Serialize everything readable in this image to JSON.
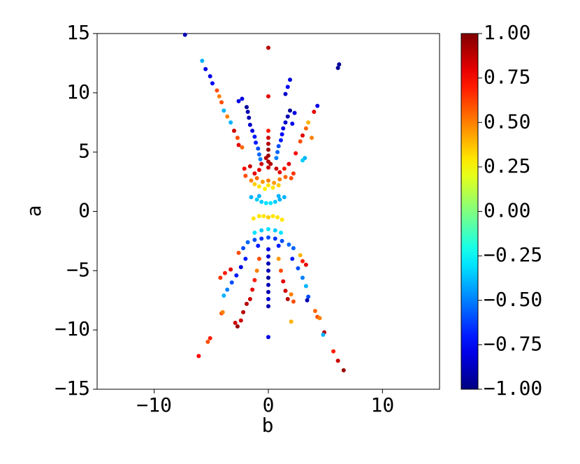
{
  "chart_data": {
    "type": "scatter",
    "xlabel": "b",
    "ylabel": "a",
    "xlim": [
      -15,
      15
    ],
    "ylim": [
      -15,
      15
    ],
    "xticks": [
      {
        "value": -10,
        "label": "−10"
      },
      0,
      10
    ],
    "yticks": [
      {
        "value": -15,
        "label": "−15"
      },
      {
        "value": -10,
        "label": "−10"
      },
      {
        "value": -5,
        "label": "−5"
      },
      0,
      5,
      10,
      15
    ],
    "colormap": "jet",
    "clim": [
      -1,
      1
    ],
    "cticks": [
      {
        "value": -1,
        "label": "−1.00"
      },
      {
        "value": -0.75,
        "label": "−0.75"
      },
      {
        "value": -0.5,
        "label": "−0.50"
      },
      {
        "value": -0.25,
        "label": "−0.25"
      },
      {
        "value": 0,
        "label": "0.00"
      },
      {
        "value": 0.25,
        "label": "0.25"
      },
      {
        "value": 0.5,
        "label": "0.50"
      },
      {
        "value": 0.75,
        "label": "0.75"
      },
      {
        "value": 1,
        "label": "1.00"
      }
    ],
    "x": [
      -7.3,
      0,
      6.1,
      6.2,
      0,
      -5.8,
      -5.5,
      -5.1,
      -4.9,
      -4.5,
      -4.3,
      -4.1,
      -3.9,
      -3.6,
      -3.3,
      -3.0,
      -2.7,
      -2.3,
      -2.6,
      4.3,
      4.0,
      3.5,
      3.3,
      3.0,
      3.8,
      2.8,
      3.2,
      3.0,
      2.4,
      1.9,
      1.7,
      1.5,
      -2.3,
      -2.6,
      -1.9,
      -1.8,
      -1.7,
      -1.6,
      -1.4,
      -1.2,
      -1.1,
      -0.9,
      -0.8,
      -0.7,
      1.9,
      1.7,
      1.5,
      1.3,
      1.2,
      1.1,
      0.9,
      0.8,
      0.7,
      2.3,
      2.1,
      0,
      0,
      0,
      0,
      0,
      0,
      0,
      0.2,
      -0.2,
      -0.6,
      -0.8,
      -1.2,
      -1.6,
      -2.1,
      0.7,
      1.0,
      1.4,
      1.8,
      2.2,
      -2.0,
      -1.5,
      -1.0,
      -0.5,
      0,
      0.5,
      1.0,
      1.5,
      2.0,
      -0.8,
      -0.3,
      0,
      0.4,
      0.9,
      -1.2,
      -1.5,
      -1.0,
      -0.6,
      -0.2,
      0.2,
      0.6,
      1.0,
      1.4,
      -0.8,
      0.9,
      -1.3,
      -0.8,
      -0.4,
      0,
      0.4,
      0.8,
      1.2,
      -1.2,
      -0.6,
      0,
      0.6,
      1.1,
      -1.8,
      -1.2,
      -0.6,
      0,
      0.6,
      1.2,
      1.8,
      -0.9,
      0.9,
      -2.2,
      2.2,
      0,
      0,
      0,
      0,
      0,
      0,
      0,
      0,
      0,
      0,
      -0.8,
      -1.0,
      -1.2,
      -1.4,
      -1.6,
      0.9,
      1.1,
      1.3,
      1.5,
      1.7,
      -1.9,
      -2.2,
      -2.4,
      -2.7,
      -2.9,
      -2.0,
      -2.4,
      -2.8,
      -3.2,
      -3.6,
      -3.9,
      2.1,
      2.6,
      3.0,
      3.3,
      3.5,
      3.4,
      2.0,
      2.2,
      3.3,
      2.8,
      3.0,
      2.0,
      -3.3,
      -3.8,
      -4.2,
      -2.6,
      -4.1,
      -4.0,
      -5.1,
      -5.3,
      -6.1,
      4.1,
      4.3,
      4.5,
      4.9,
      4.8,
      5.7,
      6.1,
      6.6
    ],
    "values": [
      14.9,
      13.8,
      12.1,
      12.4,
      9.7,
      12.7,
      12.0,
      11.4,
      10.8,
      10.2,
      9.7,
      9.2,
      8.5,
      8.0,
      7.5,
      6.8,
      6.2,
      5.4,
      5.6,
      8.9,
      8.4,
      7.5,
      7.0,
      6.4,
      6.2,
      5.9,
      4.5,
      4.3,
      4.9,
      11.1,
      10.5,
      9.9,
      9.5,
      9.3,
      8.8,
      8.4,
      7.9,
      7.3,
      6.8,
      6.3,
      5.8,
      5.3,
      4.8,
      4.4,
      8.5,
      8.0,
      7.5,
      7.0,
      6.5,
      6.0,
      5.5,
      5.0,
      4.5,
      8.3,
      7.4,
      6.8,
      6.2,
      5.7,
      5.2,
      4.7,
      4.2,
      3.7,
      4.0,
      4.5,
      4.0,
      3.5,
      3.2,
      3.8,
      3.6,
      3.6,
      3.3,
      3.6,
      4.0,
      3.2,
      3.0,
      2.6,
      2.8,
      2.5,
      2.6,
      2.4,
      2.7,
      2.9,
      2.8,
      2.1,
      1.9,
      2.2,
      2.0,
      2.2,
      2.3,
      1.2,
      1.0,
      0.8,
      0.7,
      0.7,
      0.8,
      1.0,
      1.2,
      1.3,
      1.3,
      -0.6,
      -0.4,
      -0.4,
      -0.5,
      -0.4,
      -0.5,
      -0.7,
      -1.8,
      -1.6,
      -1.5,
      -1.6,
      -1.8,
      -2.6,
      -2.4,
      -2.3,
      -2.2,
      -2.3,
      -2.5,
      -2.8,
      -2.9,
      -2.9,
      -3.1,
      -3.1,
      -3.2,
      -3.8,
      -4.4,
      -5.0,
      -5.6,
      -6.2,
      -6.8,
      -7.4,
      -8.0,
      -10.6,
      -4.0,
      -5.0,
      -5.8,
      -6.6,
      -7.4,
      -4.0,
      -5.0,
      -5.9,
      -6.7,
      -7.4,
      -7.8,
      -8.5,
      -9.2,
      -9.7,
      -9.4,
      -4.0,
      -4.7,
      -5.4,
      -6.0,
      -6.6,
      -7.1,
      -4.0,
      -4.8,
      -5.6,
      -6.3,
      -7.2,
      -7.5,
      -7.0,
      -7.6,
      -4.5,
      -3.7,
      -4.2,
      -9.3,
      -4.9,
      -5.2,
      -5.6,
      -3.5,
      -8.6,
      -8.5,
      -10.7,
      -11.0,
      -12.2,
      -8.4,
      -8.9,
      -9.0,
      -10.2,
      -10.4,
      -11.8,
      -12.6,
      -13.4
    ],
    "color_values": [
      -0.9,
      0.9,
      -0.95,
      -0.95,
      0.8,
      -0.4,
      -0.8,
      -0.8,
      -0.75,
      0.6,
      0.5,
      0.6,
      -0.4,
      0.5,
      -0.4,
      0.85,
      0.6,
      0.55,
      0.8,
      -0.8,
      0.8,
      0.4,
      0.55,
      0.8,
      0.5,
      0.6,
      -0.4,
      -0.35,
      0.75,
      -0.8,
      -0.75,
      -0.85,
      -0.8,
      -0.8,
      -0.95,
      -0.9,
      -0.9,
      -0.85,
      -0.8,
      -0.7,
      -0.7,
      -0.6,
      -0.55,
      -0.5,
      -0.95,
      -0.9,
      -0.85,
      -0.8,
      -0.75,
      -0.7,
      -0.6,
      -0.55,
      -0.5,
      -0.8,
      -0.8,
      0.7,
      0.85,
      0.9,
      0.95,
      0.95,
      0.9,
      0.85,
      0.9,
      0.9,
      0.85,
      0.8,
      0.8,
      0.85,
      0.75,
      0.85,
      0.8,
      0.7,
      0.8,
      0.65,
      0.6,
      0.5,
      0.55,
      0.45,
      0.5,
      0.45,
      0.5,
      0.55,
      0.6,
      0.3,
      0.28,
      0.3,
      0.3,
      0.35,
      0.35,
      -0.4,
      -0.35,
      -0.35,
      -0.3,
      -0.3,
      -0.35,
      -0.4,
      -0.4,
      -0.4,
      -0.4,
      0.3,
      0.3,
      0.3,
      0.35,
      0.3,
      0.3,
      0.3,
      -0.3,
      -0.35,
      -0.3,
      -0.35,
      -0.3,
      -0.55,
      -0.6,
      -0.65,
      -0.6,
      -0.65,
      -0.6,
      -0.55,
      -0.7,
      -0.7,
      -0.6,
      -0.55,
      -0.8,
      -0.85,
      -0.9,
      -0.9,
      -0.95,
      -0.9,
      -0.9,
      -0.85,
      -0.9,
      -0.8,
      0.6,
      0.5,
      0.7,
      0.8,
      0.85,
      0.45,
      0.6,
      0.8,
      0.85,
      0.9,
      0.9,
      0.9,
      0.85,
      0.95,
      0.85,
      -0.7,
      -0.8,
      -0.7,
      -0.6,
      -0.5,
      -0.4,
      -0.7,
      -0.6,
      -0.5,
      -0.4,
      -0.6,
      -0.9,
      0.5,
      0.6,
      0.8,
      0.4,
      0.7,
      0.4,
      0.8,
      0.7,
      0.65,
      0.6,
      0.6,
      0.5,
      0.7,
      0.6,
      0.75,
      0.55,
      0.6,
      0.5,
      0.9,
      -0.4,
      0.7,
      0.85,
      0.95
    ]
  }
}
